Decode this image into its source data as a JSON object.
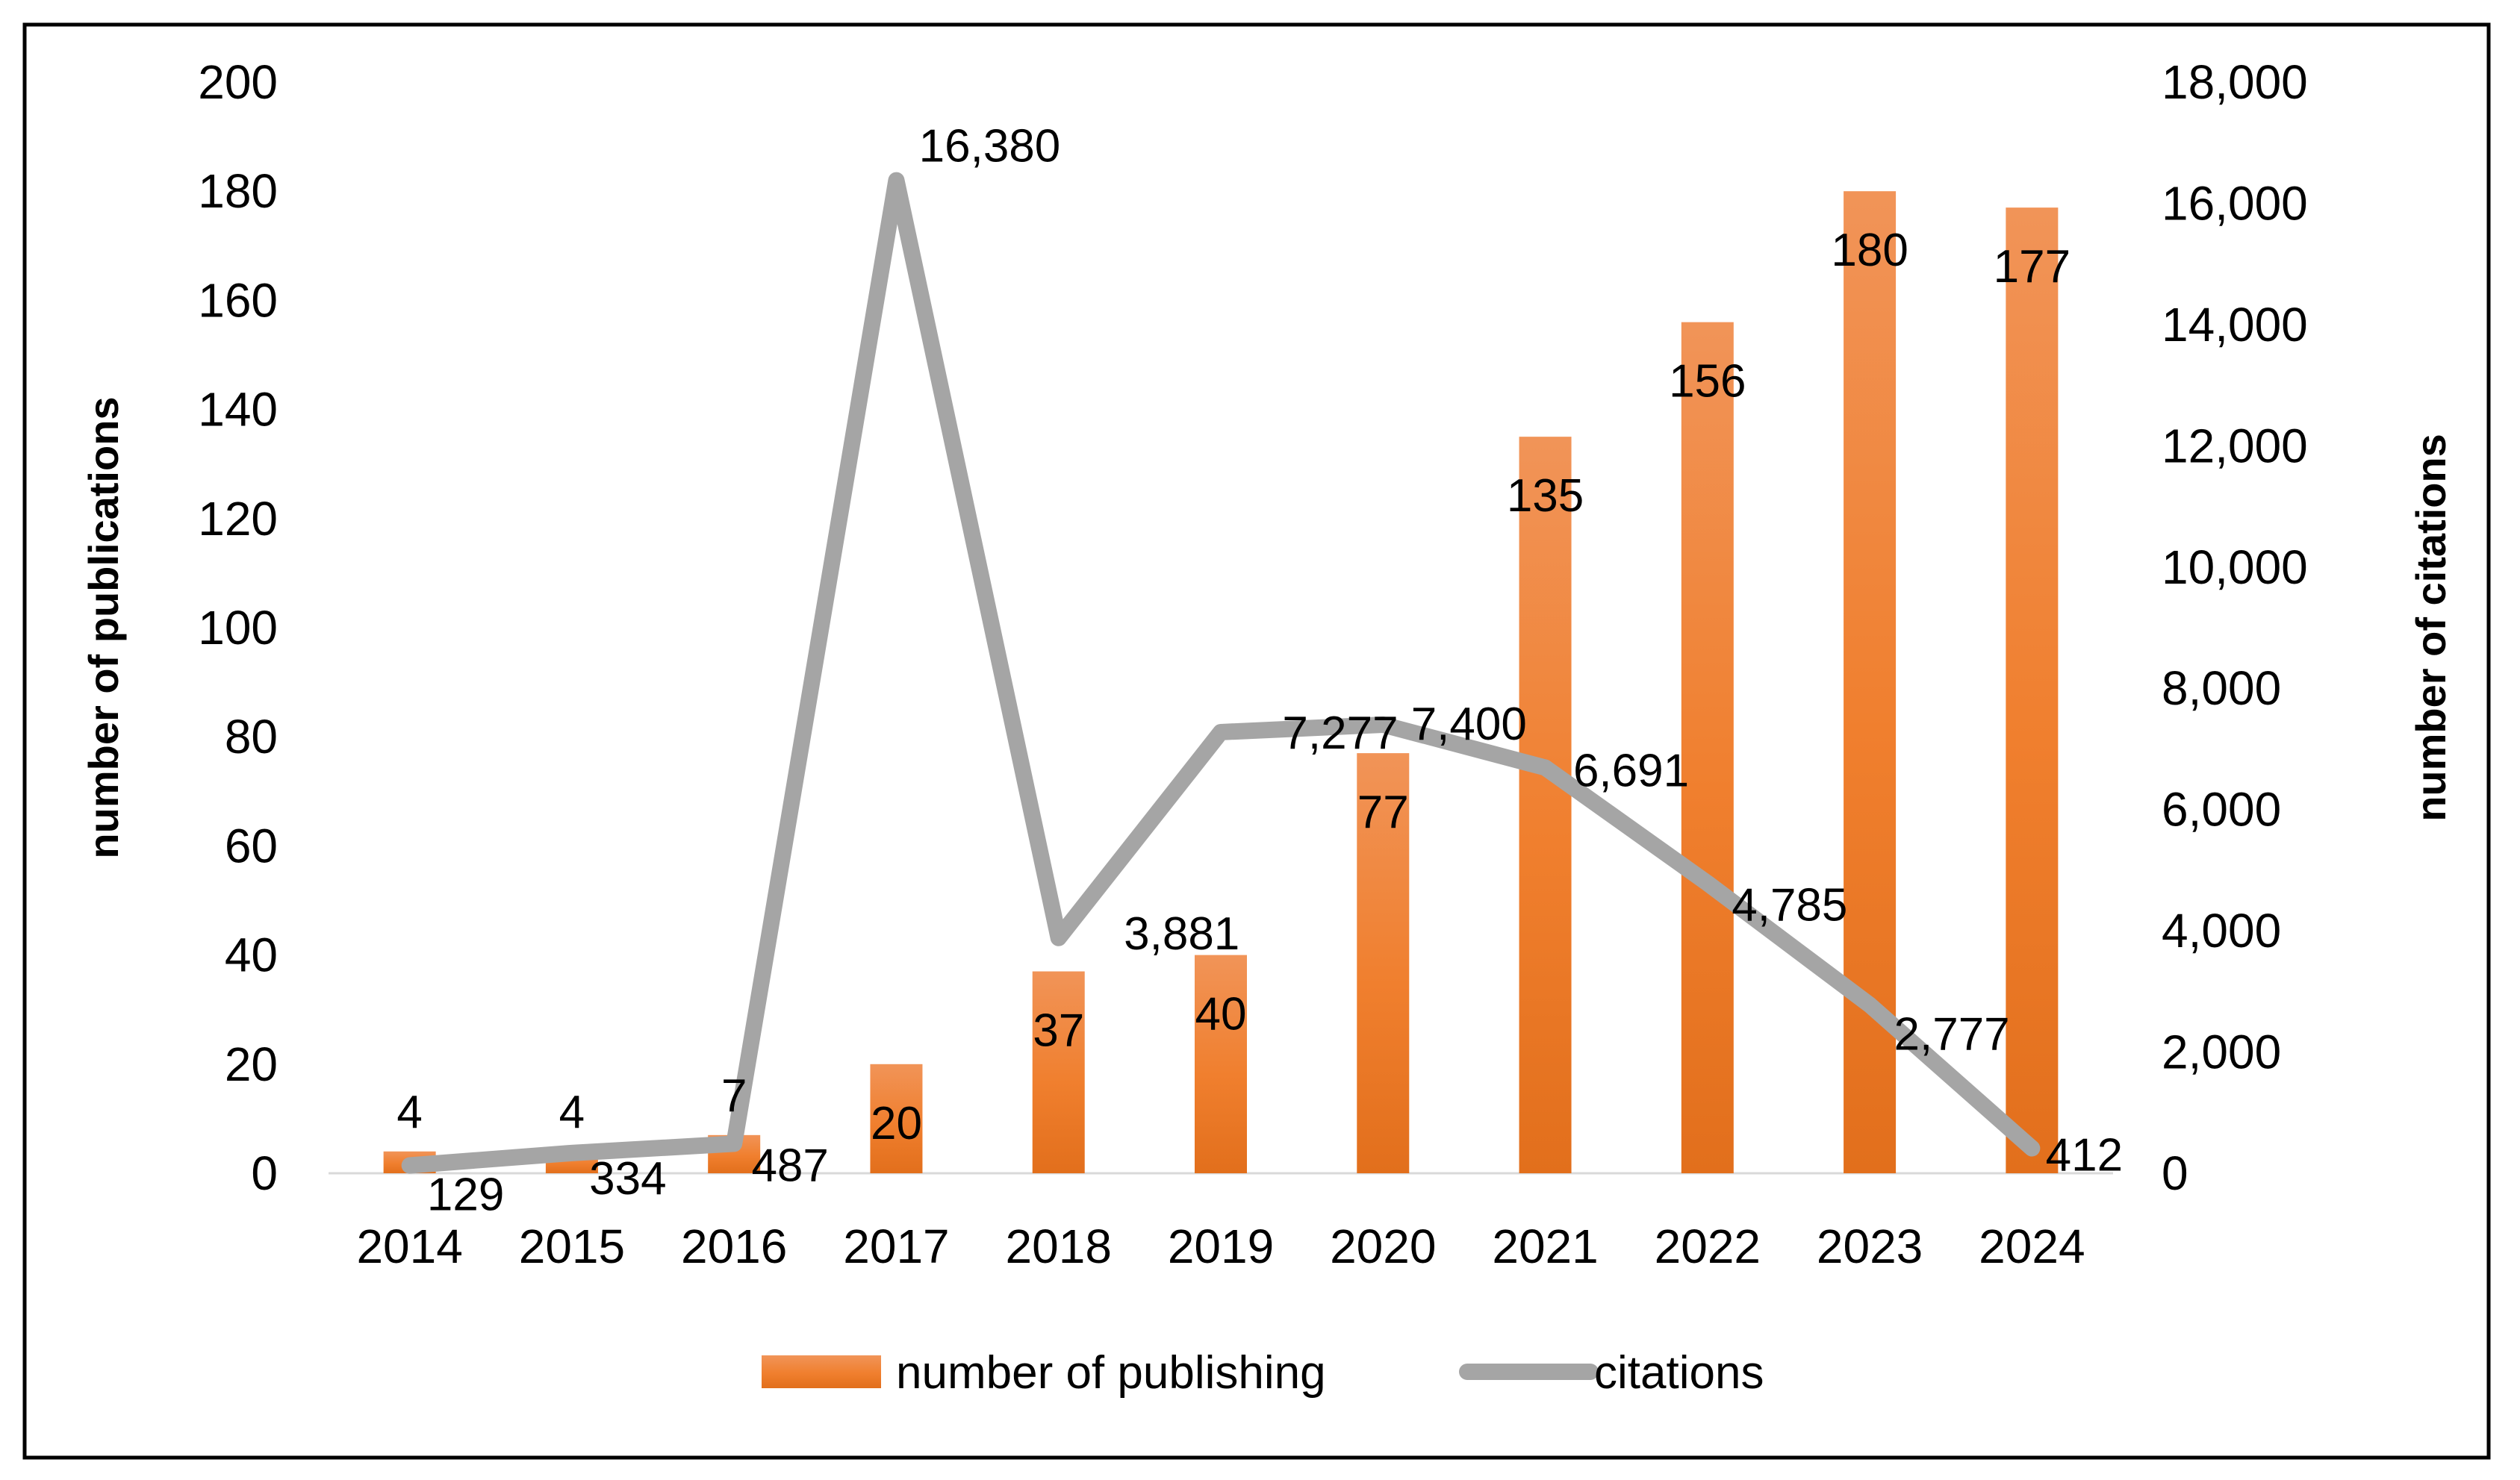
{
  "chart_data": {
    "type": "bar",
    "title": "",
    "categories": [
      "2014",
      "2015",
      "2016",
      "2017",
      "2018",
      "2019",
      "2020",
      "2021",
      "2022",
      "2023",
      "2024"
    ],
    "series": [
      {
        "name": "number of publishing",
        "type": "bar",
        "axis": "left",
        "color": "#ED7D31",
        "values": [
          4,
          4,
          7,
          20,
          37,
          40,
          77,
          135,
          156,
          180,
          177
        ],
        "labels": [
          "4",
          "4",
          "7",
          "20",
          "37",
          "40",
          "77",
          "135",
          "156",
          "180",
          "177"
        ]
      },
      {
        "name": "citations",
        "type": "line",
        "axis": "right",
        "color": "#A5A5A5",
        "values": [
          129,
          334,
          487,
          16380,
          3881,
          7277,
          7400,
          6691,
          4785,
          2777,
          412
        ],
        "labels": [
          "129",
          "334",
          "487",
          "16,380",
          "3,881",
          "7,277",
          "7,400",
          "6,691",
          "4,785",
          "2,777",
          "412"
        ]
      }
    ],
    "ylabel": "number of publications",
    "y2label": "number of citations",
    "ylim": [
      0,
      200
    ],
    "y2lim": [
      0,
      18000
    ],
    "yticks": [
      "0",
      "20",
      "40",
      "60",
      "80",
      "100",
      "120",
      "140",
      "160",
      "180",
      "200"
    ],
    "y2ticks": [
      "0",
      "2,000",
      "4,000",
      "6,000",
      "8,000",
      "10,000",
      "12,000",
      "14,000",
      "16,000",
      "18,000"
    ],
    "legend_position": "bottom",
    "grid": false
  }
}
